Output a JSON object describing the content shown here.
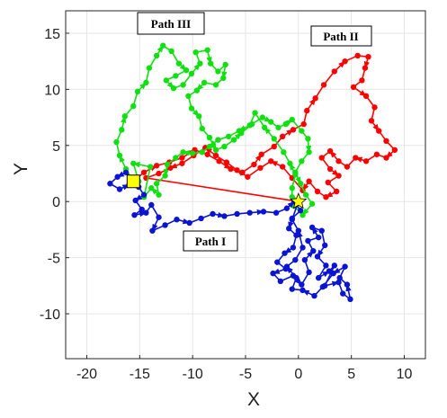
{
  "chart_data": {
    "type": "line",
    "title": "",
    "xlabel": "X",
    "ylabel": "Y",
    "xlim": [
      -22,
      12
    ],
    "ylim": [
      -14,
      17
    ],
    "xticks": [
      -20,
      -15,
      -10,
      -5,
      0,
      5,
      10
    ],
    "yticks": [
      -10,
      -5,
      0,
      5,
      10,
      15
    ],
    "xtick_labels": [
      "-20",
      "-15",
      "-10",
      "-5",
      "0",
      "5",
      "10"
    ],
    "ytick_labels": [
      "-10",
      "-5",
      "0",
      "5",
      "10",
      "15"
    ],
    "grid": true,
    "legend": "none",
    "annotations": [
      "Path III",
      "Path II",
      "Path I"
    ],
    "series": [
      {
        "name": "Path I",
        "color": "#0a14d2",
        "marker": "circle",
        "points": [
          [
            -15.6,
            1.8
          ],
          [
            -16.3,
            2.6
          ],
          [
            -17.1,
            2.2
          ],
          [
            -17.8,
            1.6
          ],
          [
            -16.9,
            1.1
          ],
          [
            -16.0,
            1.5
          ],
          [
            -15.1,
            1.3
          ],
          [
            -14.6,
            0.6
          ],
          [
            -15.4,
            0.1
          ],
          [
            -14.8,
            -0.7
          ],
          [
            -15.5,
            -1.2
          ],
          [
            -14.4,
            -1.0
          ],
          [
            -13.9,
            -0.3
          ],
          [
            -13.2,
            -1.4
          ],
          [
            -13.8,
            -2.6
          ],
          [
            -12.6,
            -2.1
          ],
          [
            -11.5,
            -1.6
          ],
          [
            -10.3,
            -1.9
          ],
          [
            -9.2,
            -1.5
          ],
          [
            -8.1,
            -1.1
          ],
          [
            -7.0,
            -1.3
          ],
          [
            -5.8,
            -1.1
          ],
          [
            -4.6,
            -1.0
          ],
          [
            -3.3,
            -0.9
          ],
          [
            -2.1,
            -1.0
          ],
          [
            -1.1,
            -0.6
          ],
          [
            -0.4,
            0.0
          ],
          [
            0.2,
            -0.8
          ],
          [
            -0.6,
            -1.5
          ],
          [
            -0.9,
            -2.4
          ],
          [
            -0.2,
            -3.0
          ],
          [
            -0.5,
            -4.1
          ],
          [
            -1.3,
            -4.6
          ],
          [
            -2.0,
            -5.4
          ],
          [
            -1.2,
            -6.0
          ],
          [
            -2.4,
            -6.4
          ],
          [
            -1.7,
            -7.1
          ],
          [
            -0.5,
            -6.6
          ],
          [
            0.3,
            -7.4
          ],
          [
            1.0,
            -6.3
          ],
          [
            0.6,
            -5.2
          ],
          [
            1.4,
            -4.4
          ],
          [
            0.9,
            -3.5
          ],
          [
            1.9,
            -3.2
          ],
          [
            1.3,
            -2.3
          ],
          [
            2.2,
            -2.6
          ],
          [
            2.5,
            -3.9
          ],
          [
            1.8,
            -4.9
          ],
          [
            2.6,
            -5.7
          ],
          [
            1.9,
            -6.8
          ],
          [
            2.9,
            -6.2
          ],
          [
            3.4,
            -5.7
          ],
          [
            2.5,
            -7.5
          ],
          [
            3.8,
            -7.2
          ],
          [
            4.2,
            -8.2
          ],
          [
            4.9,
            -8.7
          ],
          [
            4.6,
            -7.4
          ],
          [
            3.9,
            -6.8
          ],
          [
            4.4,
            -5.8
          ],
          [
            3.3,
            -6.4
          ],
          [
            2.3,
            -7.6
          ],
          [
            1.5,
            -8.4
          ],
          [
            0.4,
            -7.9
          ],
          [
            -0.6,
            -7.8
          ],
          [
            -0.2,
            -6.8
          ],
          [
            -1.1,
            -5.8
          ],
          [
            -0.3,
            -5.2
          ],
          [
            0.4,
            -4.1
          ],
          [
            0.0,
            -2.6
          ],
          [
            -0.6,
            -1.6
          ],
          [
            0.0,
            0.0
          ]
        ]
      },
      {
        "name": "Path II",
        "color": "#ff0000",
        "marker": "circle",
        "points": [
          [
            -15.6,
            1.8
          ],
          [
            -14.6,
            2.6
          ],
          [
            -13.4,
            3.2
          ],
          [
            -12.2,
            3.5
          ],
          [
            -11.0,
            3.9
          ],
          [
            -9.8,
            4.6
          ],
          [
            -8.6,
            4.2
          ],
          [
            -7.5,
            3.6
          ],
          [
            -6.4,
            2.9
          ],
          [
            -5.3,
            2.6
          ],
          [
            -4.2,
            3.3
          ],
          [
            -3.5,
            4.2
          ],
          [
            -2.3,
            4.9
          ],
          [
            -1.5,
            5.8
          ],
          [
            -0.5,
            6.4
          ],
          [
            0.5,
            6.9
          ],
          [
            0.8,
            8.1
          ],
          [
            1.6,
            9.2
          ],
          [
            2.4,
            10.4
          ],
          [
            3.4,
            11.6
          ],
          [
            4.4,
            12.5
          ],
          [
            5.6,
            13.0
          ],
          [
            6.6,
            12.9
          ],
          [
            6.3,
            11.9
          ],
          [
            6.0,
            10.8
          ],
          [
            5.2,
            10.2
          ],
          [
            6.4,
            9.4
          ],
          [
            7.2,
            8.4
          ],
          [
            6.9,
            7.2
          ],
          [
            7.6,
            6.3
          ],
          [
            8.3,
            5.4
          ],
          [
            9.1,
            4.6
          ],
          [
            8.3,
            3.9
          ],
          [
            7.4,
            4.2
          ],
          [
            6.4,
            3.6
          ],
          [
            5.4,
            3.9
          ],
          [
            4.6,
            3.1
          ],
          [
            3.8,
            3.6
          ],
          [
            3.0,
            4.5
          ],
          [
            2.2,
            3.9
          ],
          [
            3.0,
            2.9
          ],
          [
            3.8,
            2.3
          ],
          [
            2.8,
            1.7
          ],
          [
            3.6,
            0.9
          ],
          [
            2.6,
            0.4
          ],
          [
            1.8,
            0.9
          ],
          [
            1.0,
            1.8
          ],
          [
            0.4,
            1.0
          ],
          [
            -0.6,
            2.1
          ],
          [
            -1.5,
            3.1
          ],
          [
            -2.6,
            3.6
          ],
          [
            -3.6,
            3.0
          ],
          [
            -4.8,
            2.2
          ],
          [
            -5.8,
            2.8
          ],
          [
            -6.8,
            3.5
          ],
          [
            -7.8,
            4.1
          ],
          [
            -8.8,
            4.8
          ],
          [
            -9.9,
            4.1
          ],
          [
            -11.0,
            3.4
          ],
          [
            -12.1,
            3.0
          ],
          [
            -13.2,
            2.5
          ],
          [
            -14.4,
            2.1
          ],
          [
            0.0,
            0.0
          ]
        ]
      },
      {
        "name": "Path III",
        "color": "#10e010",
        "marker": "circle",
        "points": [
          [
            -15.6,
            1.8
          ],
          [
            -16.3,
            2.9
          ],
          [
            -16.9,
            4.1
          ],
          [
            -17.2,
            5.3
          ],
          [
            -16.7,
            6.4
          ],
          [
            -16.4,
            7.6
          ],
          [
            -15.6,
            8.5
          ],
          [
            -15.2,
            9.8
          ],
          [
            -14.4,
            10.6
          ],
          [
            -14.1,
            11.9
          ],
          [
            -13.4,
            13.0
          ],
          [
            -12.8,
            13.9
          ],
          [
            -12.0,
            13.4
          ],
          [
            -11.3,
            12.3
          ],
          [
            -10.6,
            11.7
          ],
          [
            -11.6,
            11.2
          ],
          [
            -12.5,
            10.8
          ],
          [
            -11.8,
            10.1
          ],
          [
            -10.9,
            10.4
          ],
          [
            -10.1,
            11.4
          ],
          [
            -9.3,
            12.3
          ],
          [
            -9.7,
            13.3
          ],
          [
            -8.6,
            13.5
          ],
          [
            -8.3,
            12.3
          ],
          [
            -7.6,
            11.6
          ],
          [
            -6.9,
            12.2
          ],
          [
            -7.1,
            11.0
          ],
          [
            -7.8,
            10.4
          ],
          [
            -8.9,
            10.6
          ],
          [
            -9.6,
            9.9
          ],
          [
            -10.4,
            9.4
          ],
          [
            -10.1,
            8.3
          ],
          [
            -9.4,
            7.6
          ],
          [
            -9.1,
            6.5
          ],
          [
            -8.4,
            5.7
          ],
          [
            -7.8,
            4.6
          ],
          [
            -7.0,
            4.9
          ],
          [
            -6.1,
            5.5
          ],
          [
            -5.4,
            6.1
          ],
          [
            -4.4,
            6.9
          ],
          [
            -3.4,
            7.5
          ],
          [
            -2.6,
            7.1
          ],
          [
            -1.9,
            6.6
          ],
          [
            -1.2,
            6.9
          ],
          [
            -0.6,
            7.3
          ],
          [
            0.3,
            6.3
          ],
          [
            0.9,
            5.6
          ],
          [
            1.0,
            4.4
          ],
          [
            0.3,
            3.6
          ],
          [
            -0.3,
            2.6
          ],
          [
            0.2,
            1.6
          ],
          [
            0.7,
            0.6
          ],
          [
            1.3,
            -0.2
          ],
          [
            0.4,
            -1.2
          ],
          [
            -0.4,
            -0.4
          ],
          [
            0.0,
            0.0
          ],
          [
            -0.6,
            0.4
          ],
          [
            -0.6,
            1.2
          ],
          [
            -0.3,
            2.4
          ],
          [
            -0.8,
            3.4
          ],
          [
            -1.4,
            4.4
          ],
          [
            -2.3,
            5.6
          ],
          [
            -3.2,
            6.6
          ],
          [
            -4.1,
            7.9
          ],
          [
            -4.6,
            6.8
          ],
          [
            -5.6,
            6.3
          ],
          [
            -6.6,
            5.8
          ],
          [
            -7.6,
            5.5
          ],
          [
            -8.4,
            4.9
          ],
          [
            -9.1,
            4.4
          ],
          [
            -10.0,
            4.3
          ],
          [
            -10.9,
            4.4
          ],
          [
            -11.6,
            3.9
          ],
          [
            -12.4,
            3.3
          ],
          [
            -12.6,
            2.3
          ],
          [
            -13.4,
            1.6
          ],
          [
            -13.2,
            0.6
          ],
          [
            -13.9,
            1.2
          ],
          [
            -14.6,
            0.4
          ],
          [
            -14.0,
            3.1
          ],
          [
            -15.6,
            3.4
          ],
          [
            -15.1,
            1.8
          ]
        ]
      }
    ],
    "start_point": {
      "x": -15.6,
      "y": 1.8,
      "marker": "square",
      "color": "#ffff00"
    },
    "end_point": {
      "x": 0.0,
      "y": 0.0,
      "marker": "star",
      "color": "#ffff00"
    }
  }
}
